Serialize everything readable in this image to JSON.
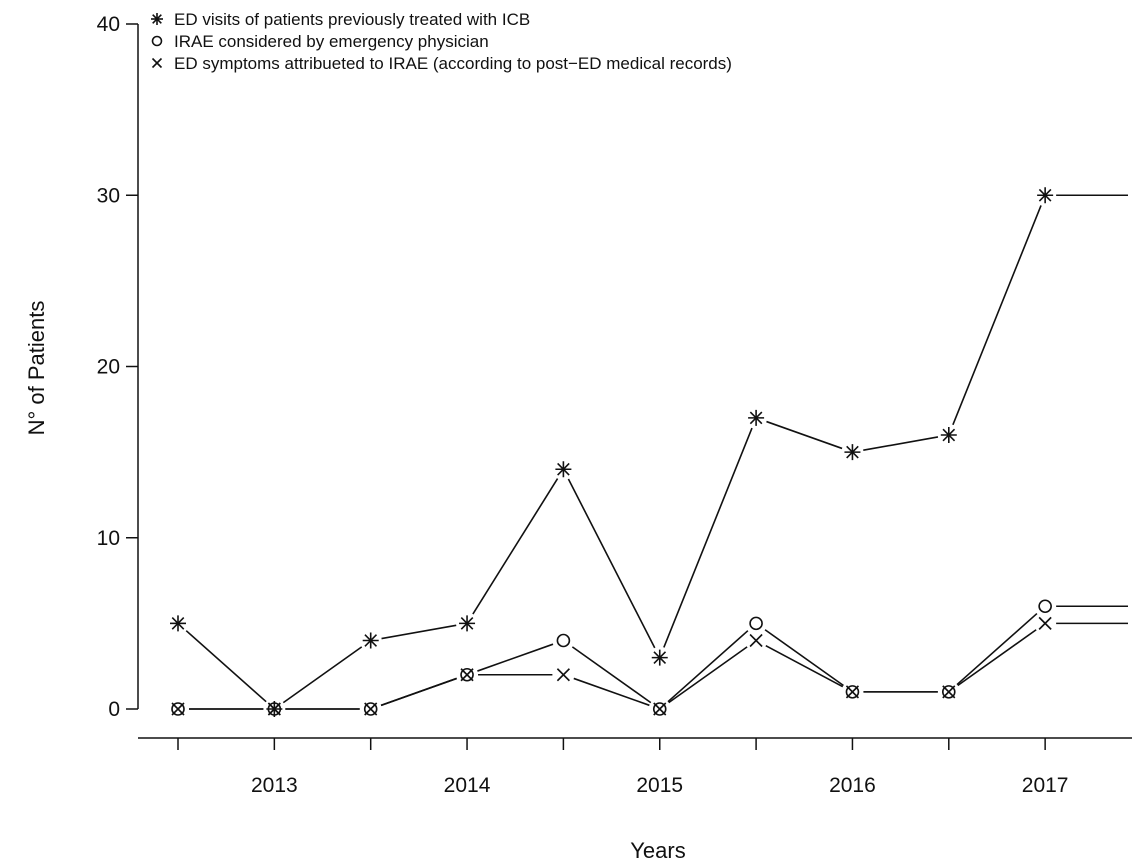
{
  "chart_data": {
    "type": "line",
    "xlabel": "Years",
    "ylabel": "N° of Patients",
    "ylim": [
      0,
      40
    ],
    "yticks": [
      0,
      10,
      20,
      30,
      40
    ],
    "x": [
      2012.5,
      2013,
      2013.5,
      2014,
      2014.5,
      2015,
      2015.5,
      2016,
      2016.5,
      2017
    ],
    "x_last_value_extension": 2017.43,
    "xlim": [
      2012.5,
      2017.43
    ],
    "xticks": [
      2012.5,
      2013,
      2013.5,
      2014,
      2014.5,
      2015,
      2015.5,
      2016,
      2016.5,
      2017
    ],
    "xtick_labels": [
      {
        "value": 2013,
        "label": "2013"
      },
      {
        "value": 2014,
        "label": "2014"
      },
      {
        "value": 2015,
        "label": "2015"
      },
      {
        "value": 2016,
        "label": "2016"
      },
      {
        "value": 2017,
        "label": "2017"
      }
    ],
    "grid": false,
    "legend_position": "top-left",
    "series": [
      {
        "name": "ED visits of patients previously treated with ICB",
        "marker": "asterisk",
        "values": [
          5,
          0,
          4,
          5,
          14,
          3,
          17,
          15,
          16,
          30
        ]
      },
      {
        "name": "IRAE considered by emergency physician",
        "marker": "circle",
        "values": [
          0,
          0,
          0,
          2,
          4,
          0,
          5,
          1,
          1,
          6
        ]
      },
      {
        "name": "ED symptoms attribueted to IRAE (according to post−ED medical records)",
        "marker": "cross",
        "values": [
          0,
          0,
          0,
          2,
          2,
          0,
          4,
          1,
          1,
          5
        ]
      }
    ]
  }
}
